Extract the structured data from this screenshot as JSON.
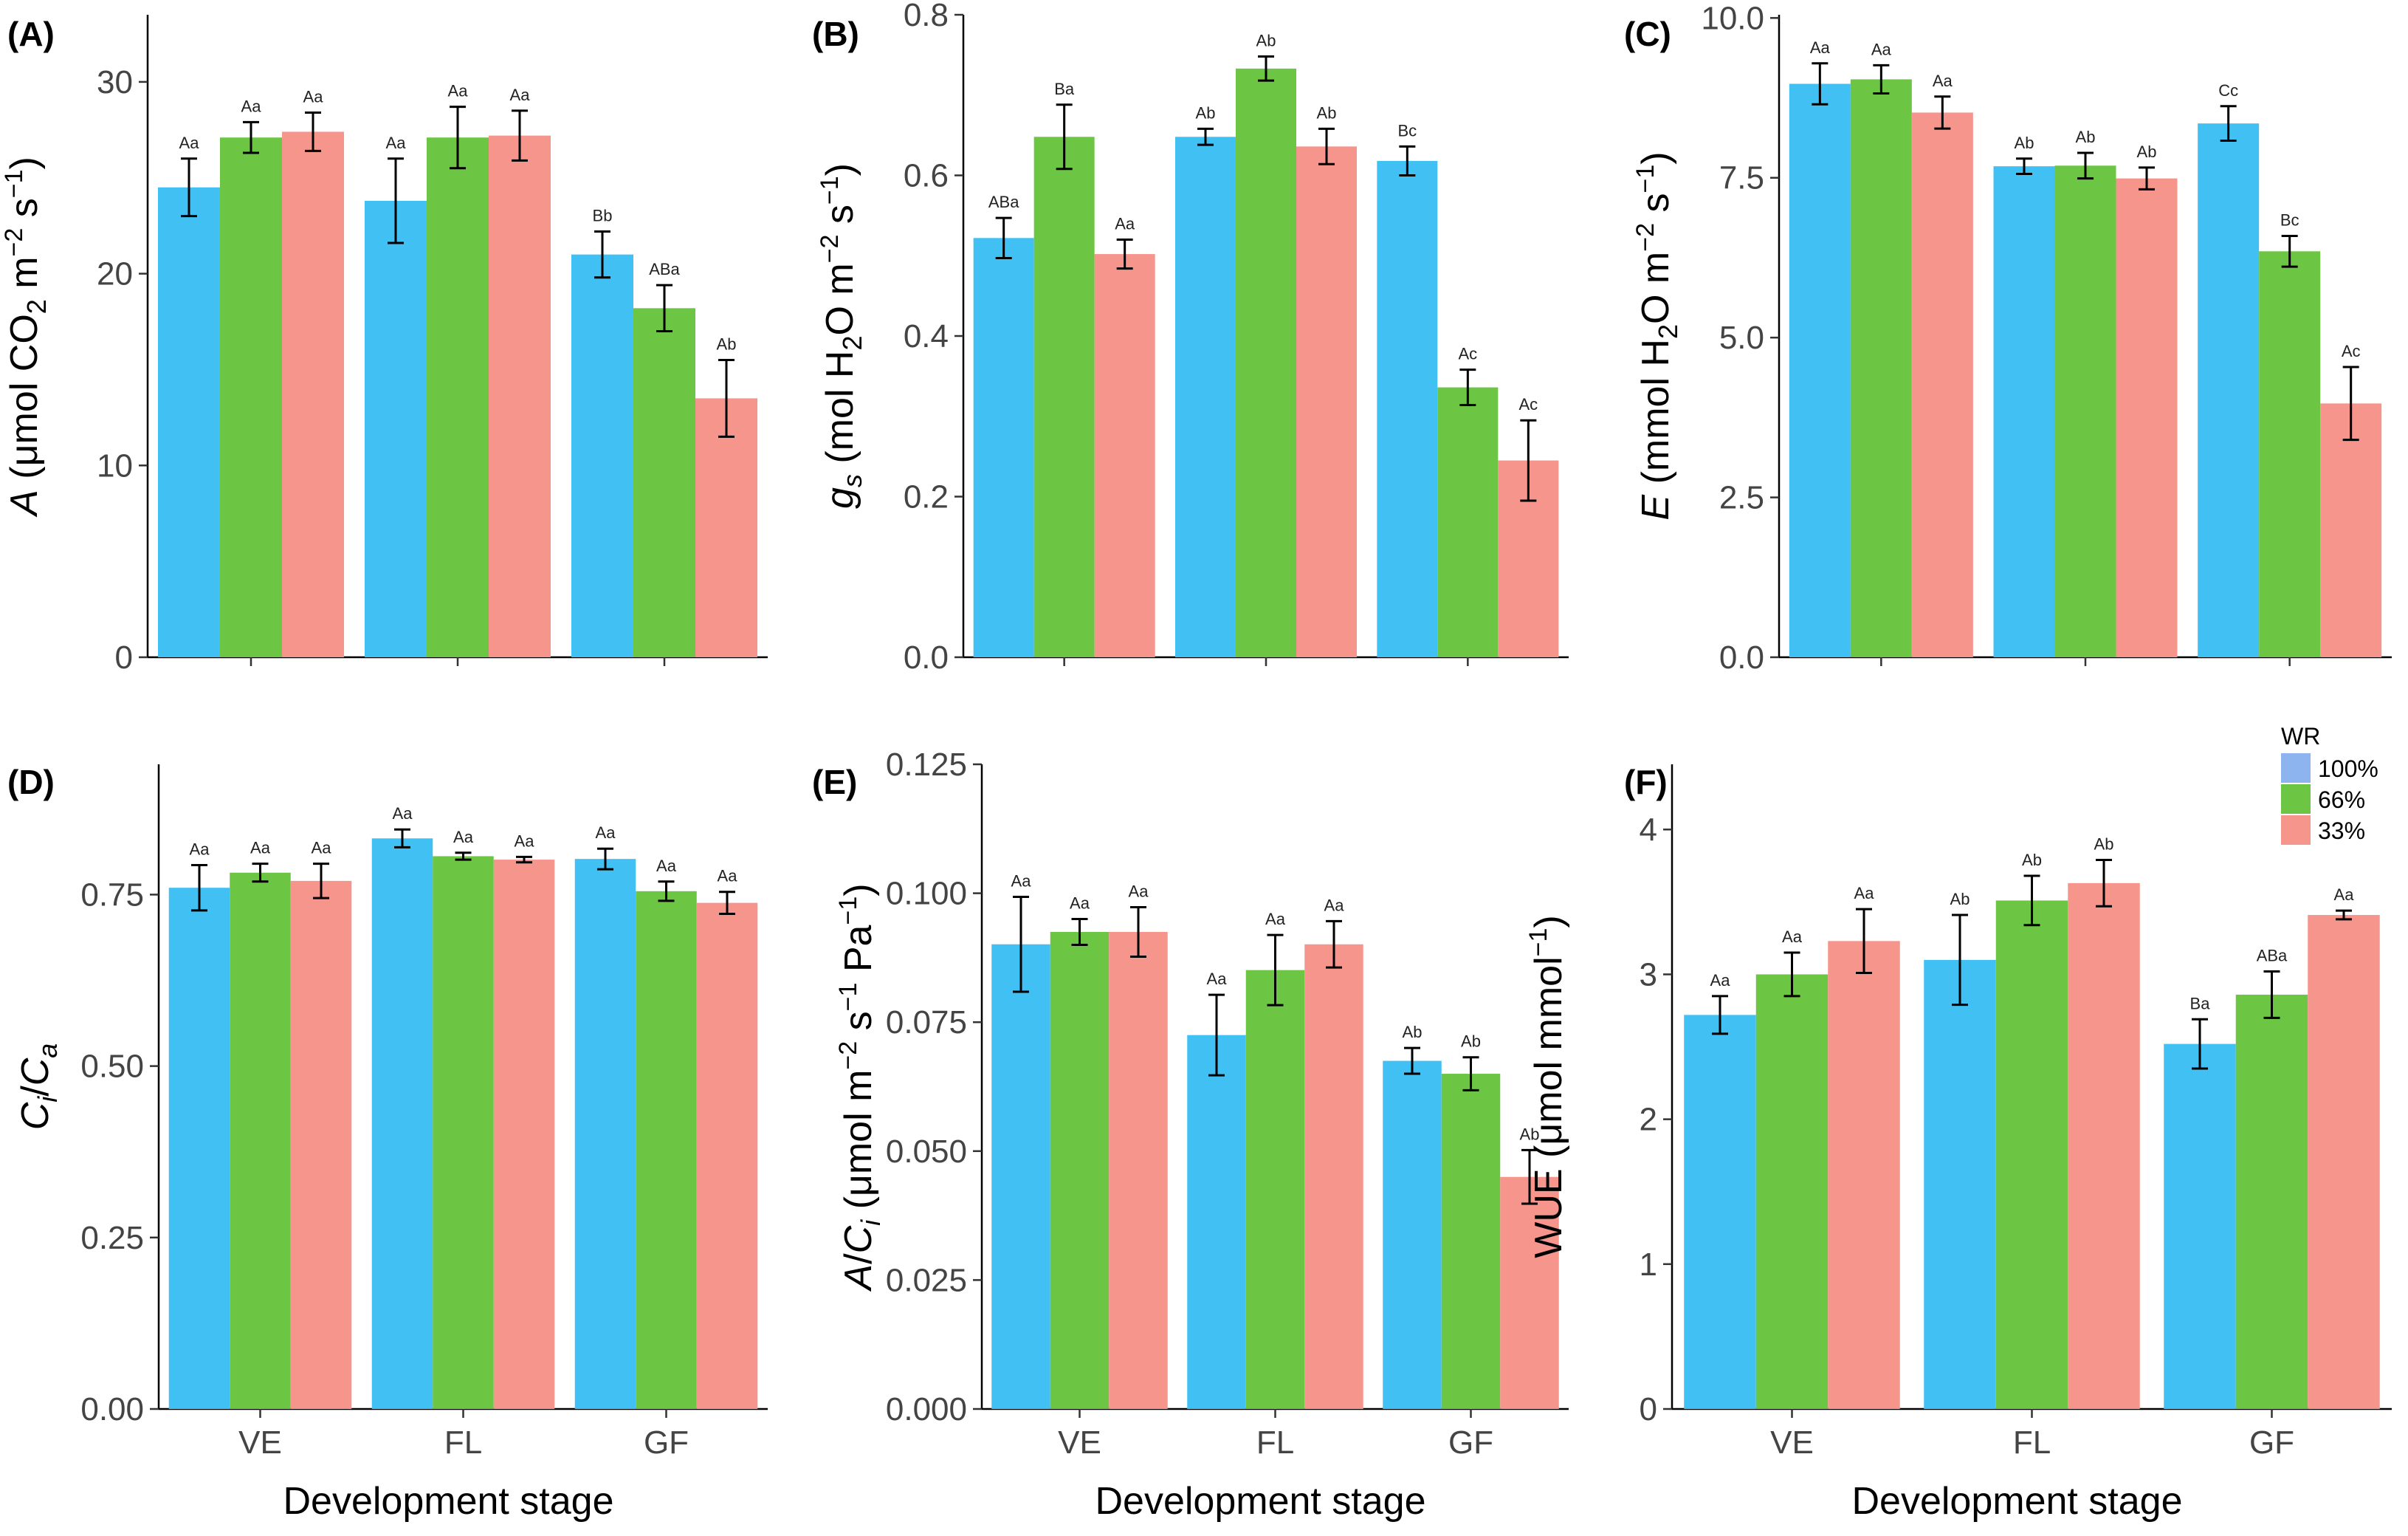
{
  "figure": {
    "xlabel": "Development stage",
    "stages": [
      "VE",
      "FL",
      "GF"
    ],
    "legend": {
      "title": "WR",
      "entries": [
        {
          "label": "100%",
          "color": "#41c0f4",
          "key_color": "#8eb4f0"
        },
        {
          "label": "66%",
          "color": "#6cc644",
          "key_color": "#6cc644"
        },
        {
          "label": "33%",
          "color": "#f5958c",
          "key_color": "#f5958c"
        }
      ]
    }
  },
  "chart_data": [
    {
      "id": "A",
      "tag": "(A)",
      "type": "bar",
      "ylabel": [
        "A",
        " (μmol CO",
        "2",
        " m",
        "−2",
        " s",
        "−1",
        ")"
      ],
      "ylim": [
        0,
        33.5
      ],
      "ticks": [
        0,
        10,
        20,
        30
      ],
      "tick_labels": [
        "0",
        "10",
        "20",
        "30"
      ],
      "show_x_ticklabels": false,
      "categories": [
        "VE",
        "FL",
        "GF"
      ],
      "series": [
        {
          "name": "100%",
          "values": [
            24.5,
            23.8,
            21.0
          ],
          "errors": [
            1.5,
            2.2,
            1.2
          ],
          "labels": [
            "Aa",
            "Aa",
            "Bb"
          ]
        },
        {
          "name": "66%",
          "values": [
            27.1,
            27.1,
            18.2
          ],
          "errors": [
            0.8,
            1.6,
            1.2
          ],
          "labels": [
            "Aa",
            "Aa",
            "ABa"
          ]
        },
        {
          "name": "33%",
          "values": [
            27.4,
            27.2,
            13.5
          ],
          "errors": [
            1.0,
            1.3,
            2.0
          ],
          "labels": [
            "Aa",
            "Aa",
            "Ab"
          ]
        }
      ]
    },
    {
      "id": "B",
      "tag": "(B)",
      "type": "bar",
      "ylabel": [
        "g",
        "s",
        " (mol H",
        "2",
        "O m",
        "−2",
        " s",
        "−1",
        ")"
      ],
      "ylim": [
        0,
        0.8
      ],
      "ticks": [
        0,
        0.2,
        0.4,
        0.6,
        0.8
      ],
      "tick_labels": [
        "0.0",
        "0.2",
        "0.4",
        "0.6",
        "0.8"
      ],
      "show_x_ticklabels": false,
      "categories": [
        "VE",
        "FL",
        "GF"
      ],
      "series": [
        {
          "name": "100%",
          "values": [
            0.522,
            0.648,
            0.618
          ],
          "errors": [
            0.025,
            0.01,
            0.018
          ],
          "labels": [
            "ABa",
            "Ab",
            "Bc"
          ]
        },
        {
          "name": "66%",
          "values": [
            0.648,
            0.733,
            0.336
          ],
          "errors": [
            0.04,
            0.015,
            0.022
          ],
          "labels": [
            "Ba",
            "Ab",
            "Ac"
          ]
        },
        {
          "name": "33%",
          "values": [
            0.502,
            0.636,
            0.245
          ],
          "errors": [
            0.018,
            0.022,
            0.05
          ],
          "labels": [
            "Aa",
            "Ab",
            "Ac"
          ]
        }
      ]
    },
    {
      "id": "C",
      "tag": "(C)",
      "type": "bar",
      "ylabel": [
        "E",
        " (mmol H",
        "2",
        "O m",
        "−2",
        " s",
        "−1",
        ")"
      ],
      "ylim": [
        0,
        10.05
      ],
      "ticks": [
        0,
        2.5,
        5.0,
        7.5,
        10.0
      ],
      "tick_labels": [
        "0.0",
        "2.5",
        "5.0",
        "7.5",
        "10.0"
      ],
      "show_x_ticklabels": false,
      "categories": [
        "VE",
        "FL",
        "GF"
      ],
      "series": [
        {
          "name": "100%",
          "values": [
            8.97,
            7.68,
            8.35
          ],
          "errors": [
            0.32,
            0.12,
            0.27
          ],
          "labels": [
            "Aa",
            "Ab",
            "Cc"
          ]
        },
        {
          "name": "66%",
          "values": [
            9.04,
            7.69,
            6.35
          ],
          "errors": [
            0.22,
            0.2,
            0.24
          ],
          "labels": [
            "Aa",
            "Ab",
            "Bc"
          ]
        },
        {
          "name": "33%",
          "values": [
            8.52,
            7.49,
            3.97
          ],
          "errors": [
            0.25,
            0.17,
            0.57
          ],
          "labels": [
            "Aa",
            "Ab",
            "Ac"
          ]
        }
      ]
    },
    {
      "id": "D",
      "tag": "(D)",
      "type": "bar",
      "ylabel": [
        "C",
        "i",
        "/",
        "C",
        "a"
      ],
      "ylim": [
        0,
        0.94
      ],
      "ticks": [
        0,
        0.25,
        0.5,
        0.75
      ],
      "tick_labels": [
        "0.00",
        "0.25",
        "0.50",
        "0.75"
      ],
      "show_x_ticklabels": true,
      "categories": [
        "VE",
        "FL",
        "GF"
      ],
      "series": [
        {
          "name": "100%",
          "values": [
            0.76,
            0.832,
            0.802
          ],
          "errors": [
            0.033,
            0.013,
            0.015
          ],
          "labels": [
            "Aa",
            "Aa",
            "Aa"
          ]
        },
        {
          "name": "66%",
          "values": [
            0.782,
            0.806,
            0.755
          ],
          "errors": [
            0.013,
            0.005,
            0.014
          ],
          "labels": [
            "Aa",
            "Aa",
            "Aa"
          ]
        },
        {
          "name": "33%",
          "values": [
            0.77,
            0.801,
            0.738
          ],
          "errors": [
            0.025,
            0.004,
            0.016
          ],
          "labels": [
            "Aa",
            "Aa",
            "Aa"
          ]
        }
      ]
    },
    {
      "id": "E",
      "tag": "(E)",
      "type": "bar",
      "ylabel": [
        "A",
        "/",
        "C",
        "i",
        " (μmol m",
        "−2",
        " s",
        "−1",
        " Pa",
        "−1",
        ")"
      ],
      "ylim": [
        0,
        0.125
      ],
      "ticks": [
        0,
        0.025,
        0.05,
        0.075,
        0.1,
        0.125
      ],
      "tick_labels": [
        "0.000",
        "0.025",
        "0.050",
        "0.075",
        "0.100",
        "0.125"
      ],
      "show_x_ticklabels": true,
      "categories": [
        "VE",
        "FL",
        "GF"
      ],
      "series": [
        {
          "name": "100%",
          "values": [
            0.0901,
            0.0725,
            0.0675
          ],
          "errors": [
            0.0092,
            0.0078,
            0.0025
          ],
          "labels": [
            "Aa",
            "Aa",
            "Ab"
          ]
        },
        {
          "name": "66%",
          "values": [
            0.0925,
            0.0851,
            0.065
          ],
          "errors": [
            0.0025,
            0.0068,
            0.0032
          ],
          "labels": [
            "Aa",
            "Aa",
            "Ab"
          ]
        },
        {
          "name": "33%",
          "values": [
            0.0925,
            0.0901,
            0.045
          ],
          "errors": [
            0.0048,
            0.0045,
            0.0052
          ],
          "labels": [
            "Aa",
            "Aa",
            "Ab"
          ]
        }
      ]
    },
    {
      "id": "F",
      "tag": "(F)",
      "type": "bar",
      "ylabel": [
        "WUE (μmol mmol",
        "−1",
        ")"
      ],
      "ylim": [
        0,
        4.45
      ],
      "ticks": [
        0,
        1,
        2,
        3,
        4
      ],
      "tick_labels": [
        "0",
        "1",
        "2",
        "3",
        "4"
      ],
      "show_x_ticklabels": true,
      "categories": [
        "VE",
        "FL",
        "GF"
      ],
      "series": [
        {
          "name": "100%",
          "values": [
            2.72,
            3.1,
            2.52
          ],
          "errors": [
            0.13,
            0.31,
            0.17
          ],
          "labels": [
            "Aa",
            "Ab",
            "Ba"
          ]
        },
        {
          "name": "66%",
          "values": [
            3.0,
            3.51,
            2.86
          ],
          "errors": [
            0.15,
            0.17,
            0.16
          ],
          "labels": [
            "Aa",
            "Ab",
            "ABa"
          ]
        },
        {
          "name": "33%",
          "values": [
            3.23,
            3.63,
            3.41
          ],
          "errors": [
            0.22,
            0.16,
            0.03
          ],
          "labels": [
            "Aa",
            "Ab",
            "Aa"
          ]
        }
      ]
    }
  ]
}
